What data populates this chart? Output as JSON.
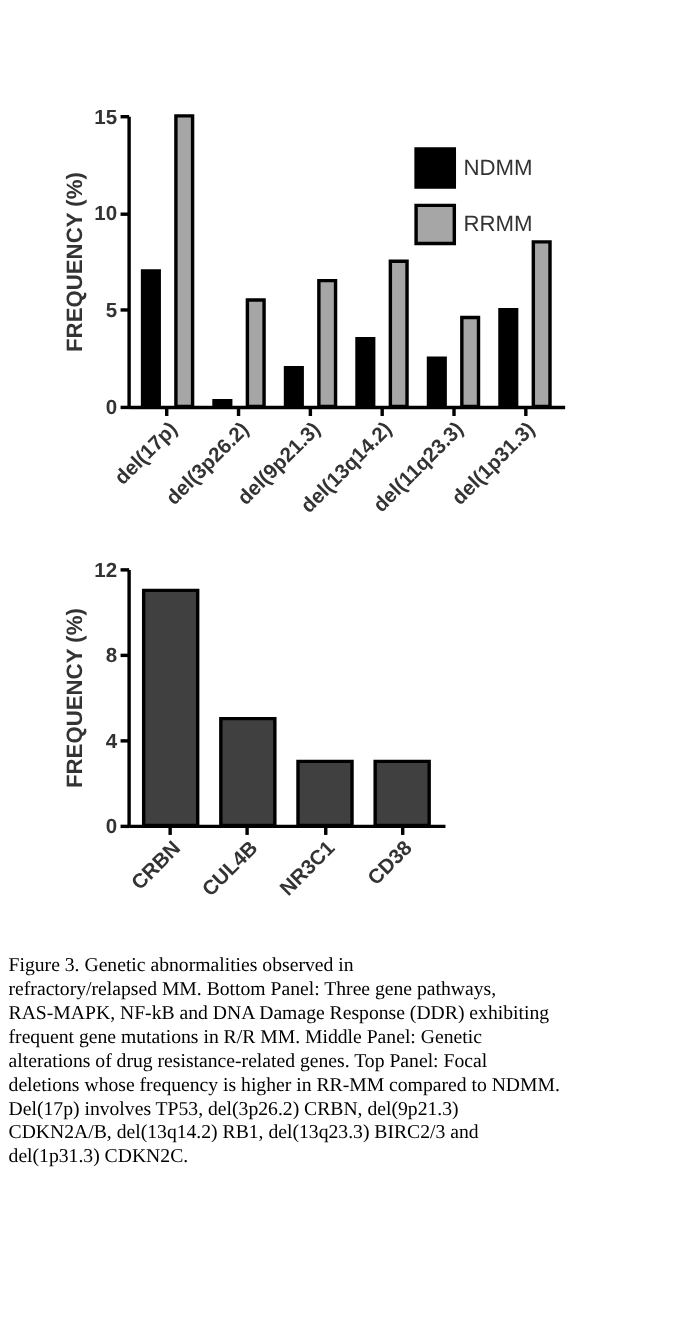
{
  "chart_data": [
    {
      "type": "bar",
      "ylabel": "FREQUENCY (%)",
      "categories": [
        "del(17p)",
        "del(3p26.2)",
        "del(9p21.3)",
        "del(13q14.2)",
        "del(11q23.3)",
        "del(1p31.3)"
      ],
      "series": [
        {
          "name": "NDMM",
          "color": "#000000",
          "values": [
            7,
            0.3,
            2,
            3.5,
            2.5,
            5
          ]
        },
        {
          "name": "RRMM",
          "color": "#a6a6a6",
          "values": [
            15,
            5.5,
            6.5,
            7.5,
            4.6,
            8.5
          ]
        }
      ],
      "ylim": [
        0,
        15
      ],
      "yticks": [
        0,
        5,
        10,
        15
      ],
      "grid": false,
      "legend": "top right"
    },
    {
      "type": "bar",
      "ylabel": "FREQUENCY (%)",
      "categories": [
        "CRBN",
        "CUL4B",
        "NR3C1",
        "CD38"
      ],
      "series": [
        {
          "color": "#404040",
          "values": [
            11,
            5,
            3,
            3
          ]
        }
      ],
      "ylim": [
        0,
        12
      ],
      "yticks": [
        0,
        4,
        8,
        12
      ],
      "grid": false,
      "legend": false,
      "annotations": [
        "Figure 3. Genetic abnormalities observed in refractory/relapsed MM. Bottom Panel: Three gene pathways, RAS-MAPK, NF-kB and DNA Damage Response (DDR) exhibiting frequent gene mutations in R/R MM. Middle Panel: Genetic alterations of drug resistance-related genes. Top Panel: Focal deletions whose frequency is higher in RR-MM compared to NDMM. Del(17p) involves TP53, del(3p26.2) CRBN, del(9p21.3) CDKN2A/B, del(13q14.2) RB1, del(13q23.3) BIRC2/3 and del(1p31.3) CDKN2C."
      ]
    }
  ]
}
